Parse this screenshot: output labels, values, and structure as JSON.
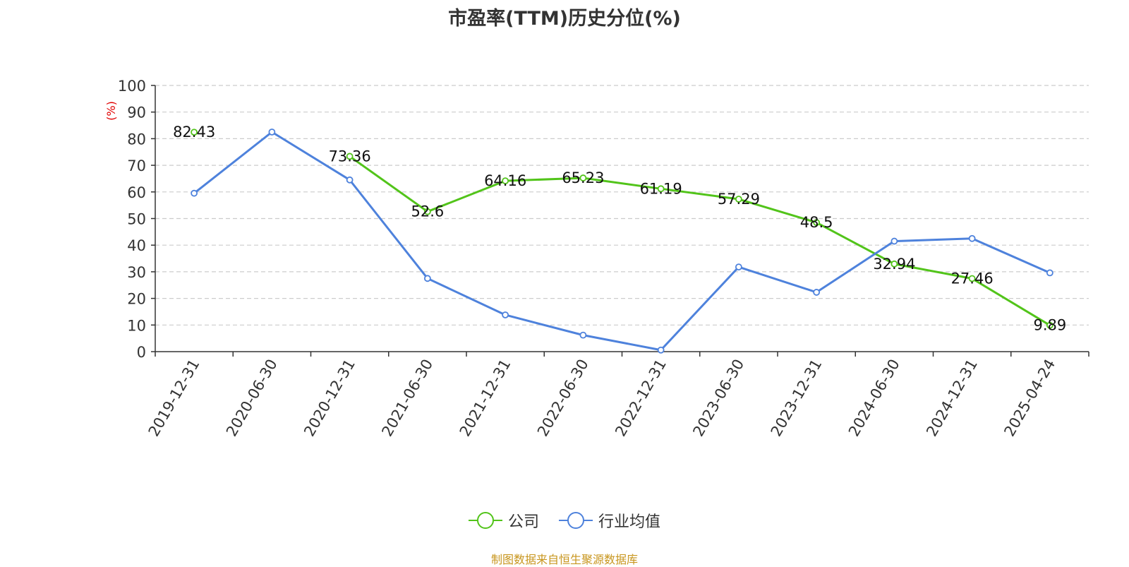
{
  "chart_data": {
    "type": "line",
    "title": "市盈率(TTM)历史分位(%)",
    "ylabel": "(%)",
    "xlabel": "",
    "ylim": [
      0,
      100
    ],
    "yticks": [
      0,
      10,
      20,
      30,
      40,
      50,
      60,
      70,
      80,
      90,
      100
    ],
    "grid": true,
    "legend_position": "bottom",
    "categories": [
      "2019-12-31",
      "2020-06-30",
      "2020-12-31",
      "2021-06-30",
      "2021-12-31",
      "2022-06-30",
      "2022-12-31",
      "2023-06-30",
      "2023-12-31",
      "2024-06-30",
      "2024-12-31",
      "2025-04-24"
    ],
    "series": [
      {
        "name": "公司",
        "color": "#52c41a",
        "values": [
          82.43,
          null,
          73.36,
          52.6,
          64.16,
          65.23,
          61.19,
          57.29,
          48.5,
          32.94,
          27.46,
          9.89
        ],
        "show_labels": true
      },
      {
        "name": "行业均值",
        "color": "#4e82dc",
        "values": [
          59.5,
          82.5,
          64.5,
          27.5,
          13.8,
          6.2,
          0.6,
          31.8,
          22.3,
          41.5,
          42.5,
          29.6
        ],
        "show_labels": false
      }
    ]
  },
  "source_note": "制图数据来自恒生聚源数据库"
}
